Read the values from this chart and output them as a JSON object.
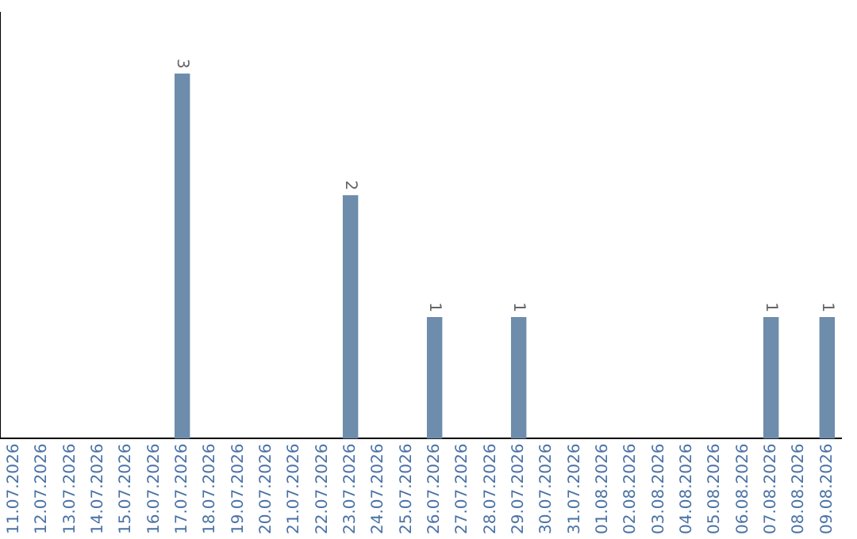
{
  "chart_data": {
    "type": "bar",
    "categories": [
      "11.07.2026",
      "12.07.2026",
      "13.07.2026",
      "14.07.2026",
      "15.07.2026",
      "16.07.2026",
      "17.07.2026",
      "18.07.2026",
      "19.07.2026",
      "20.07.2026",
      "21.07.2026",
      "22.07.2026",
      "23.07.2026",
      "24.07.2026",
      "25.07.2026",
      "26.07.2026",
      "27.07.2026",
      "28.07.2026",
      "29.07.2026",
      "30.07.2026",
      "31.07.2026",
      "01.08.2026",
      "02.08.2026",
      "03.08.2026",
      "04.08.2026",
      "05.08.2026",
      "06.08.2026",
      "07.08.2026",
      "08.08.2026",
      "09.08.2026"
    ],
    "values": [
      0,
      0,
      0,
      0,
      0,
      0,
      3,
      0,
      0,
      0,
      0,
      0,
      2,
      0,
      0,
      1,
      0,
      0,
      1,
      0,
      0,
      0,
      0,
      0,
      0,
      0,
      0,
      1,
      0,
      1
    ],
    "value_labels": [
      null,
      null,
      null,
      null,
      null,
      null,
      "3",
      null,
      null,
      null,
      null,
      null,
      "2",
      null,
      null,
      "1",
      null,
      null,
      "1",
      null,
      null,
      null,
      null,
      null,
      null,
      null,
      null,
      "1",
      null,
      "1"
    ],
    "color": "#6e8cab",
    "tick_labels": "x"
  }
}
